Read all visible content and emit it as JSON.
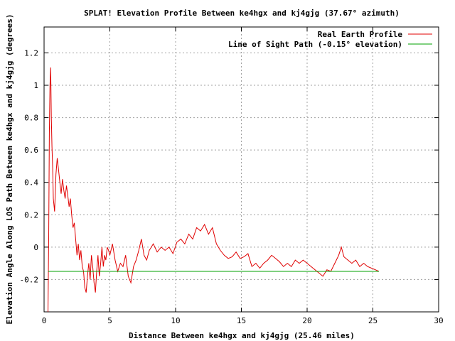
{
  "chart_data": {
    "type": "line",
    "title": "SPLAT! Elevation Profile Between ke4hgx and kj4gjg (37.67° azimuth)",
    "xlabel": "Distance Between ke4hgx and kj4gjg (25.46 miles)",
    "ylabel": "Elevation Angle Along LOS Path Between ke4hgx and kj4gjg (degrees)",
    "xlim": [
      0,
      30
    ],
    "ylim": [
      -0.4,
      1.36
    ],
    "x_ticks": [
      0,
      5,
      10,
      15,
      20,
      25,
      30
    ],
    "x_tick_labels": [
      "0",
      "5",
      "10",
      "15",
      "20",
      "25",
      "30"
    ],
    "y_ticks": [
      -0.2,
      0,
      0.2,
      0.4,
      0.6,
      0.8,
      1,
      1.2
    ],
    "y_tick_labels": [
      "-0.2",
      "0",
      "0.2",
      "0.4",
      "0.6",
      "0.8",
      "1",
      "1.2"
    ],
    "grid": true,
    "legend_position": "top-right",
    "series": [
      {
        "name": "Real Earth Profile",
        "color": "#e00000",
        "x": [
          0.3,
          0.35,
          0.4,
          0.45,
          0.5,
          0.55,
          0.6,
          0.65,
          0.7,
          0.8,
          0.9,
          1.0,
          1.1,
          1.2,
          1.3,
          1.4,
          1.5,
          1.6,
          1.7,
          1.8,
          1.9,
          2.0,
          2.1,
          2.2,
          2.3,
          2.4,
          2.5,
          2.6,
          2.7,
          2.8,
          2.9,
          3.0,
          3.1,
          3.2,
          3.3,
          3.4,
          3.5,
          3.6,
          3.7,
          3.8,
          3.9,
          4.0,
          4.1,
          4.2,
          4.3,
          4.4,
          4.5,
          4.6,
          4.7,
          4.8,
          4.9,
          5.0,
          5.2,
          5.4,
          5.6,
          5.8,
          6.0,
          6.2,
          6.4,
          6.6,
          6.8,
          7.0,
          7.2,
          7.4,
          7.6,
          7.8,
          8.0,
          8.3,
          8.6,
          8.9,
          9.2,
          9.5,
          9.8,
          10.1,
          10.4,
          10.7,
          11.0,
          11.3,
          11.6,
          11.9,
          12.2,
          12.5,
          12.8,
          13.1,
          13.4,
          13.7,
          14.0,
          14.3,
          14.6,
          14.9,
          15.2,
          15.5,
          15.8,
          16.1,
          16.4,
          16.7,
          17.0,
          17.3,
          17.6,
          17.9,
          18.2,
          18.5,
          18.8,
          19.1,
          19.4,
          19.7,
          20.0,
          20.3,
          20.6,
          20.9,
          21.2,
          21.5,
          21.8,
          22.1,
          22.4,
          22.6,
          22.8,
          23.1,
          23.4,
          23.7,
          24.0,
          24.3,
          24.6,
          24.9,
          25.2,
          25.46
        ],
        "y": [
          -0.4,
          0.05,
          0.7,
          1.0,
          1.11,
          0.8,
          0.62,
          0.5,
          0.3,
          0.22,
          0.45,
          0.55,
          0.48,
          0.4,
          0.33,
          0.42,
          0.35,
          0.3,
          0.38,
          0.32,
          0.25,
          0.3,
          0.2,
          0.12,
          0.15,
          0.05,
          -0.05,
          0.02,
          -0.08,
          -0.02,
          -0.12,
          -0.15,
          -0.25,
          -0.28,
          -0.18,
          -0.1,
          -0.2,
          -0.05,
          -0.12,
          -0.22,
          -0.28,
          -0.15,
          -0.05,
          -0.18,
          -0.1,
          0.0,
          -0.12,
          -0.05,
          -0.08,
          0.0,
          -0.02,
          -0.05,
          0.02,
          -0.08,
          -0.15,
          -0.1,
          -0.12,
          -0.05,
          -0.18,
          -0.22,
          -0.12,
          -0.08,
          -0.02,
          0.05,
          -0.05,
          -0.08,
          -0.02,
          0.02,
          -0.03,
          0.0,
          -0.02,
          0.0,
          -0.04,
          0.03,
          0.05,
          0.02,
          0.08,
          0.05,
          0.12,
          0.1,
          0.14,
          0.08,
          0.12,
          0.02,
          -0.02,
          -0.05,
          -0.07,
          -0.06,
          -0.03,
          -0.07,
          -0.06,
          -0.04,
          -0.12,
          -0.1,
          -0.13,
          -0.1,
          -0.08,
          -0.05,
          -0.07,
          -0.09,
          -0.12,
          -0.1,
          -0.12,
          -0.08,
          -0.1,
          -0.08,
          -0.1,
          -0.12,
          -0.14,
          -0.16,
          -0.18,
          -0.14,
          -0.15,
          -0.1,
          -0.05,
          0.0,
          -0.06,
          -0.08,
          -0.1,
          -0.08,
          -0.12,
          -0.1,
          -0.12,
          -0.13,
          -0.14,
          -0.15
        ]
      },
      {
        "name": "Line of Sight Path (-0.15° elevation)",
        "color": "#00a000",
        "x": [
          0.3,
          25.46
        ],
        "y": [
          -0.15,
          -0.15
        ]
      }
    ]
  }
}
